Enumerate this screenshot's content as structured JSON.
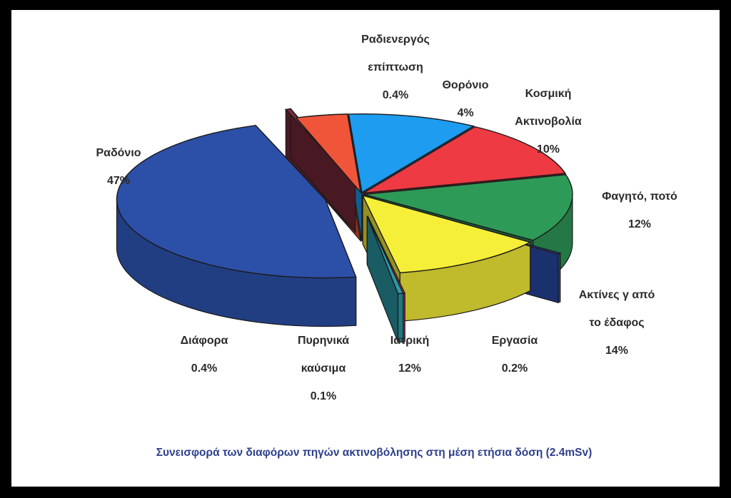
{
  "chart_data": {
    "type": "pie",
    "title": "Συνεισφορά των διαφόρων πηγών ακτινοβόλησης στη μέση ετήσια δόση (2.4mSv)",
    "unit": "%",
    "slices": [
      {
        "label_lines": [
          "Ραδόνιο"
        ],
        "value": 47,
        "value_label": "47%",
        "color": "#2c4fa8"
      },
      {
        "label_lines": [
          "Ραδιενεργός",
          "επίπτωση"
        ],
        "value": 0.4,
        "value_label": "0.4%",
        "color": "#7a2a3a"
      },
      {
        "label_lines": [
          "Θορόνιο"
        ],
        "value": 4,
        "value_label": "4%",
        "color": "#f0553a"
      },
      {
        "label_lines": [
          "Κοσμική",
          "Ακτινοβολία"
        ],
        "value": 10,
        "value_label": "10%",
        "color": "#1e9cf0"
      },
      {
        "label_lines": [
          "Φαγητό, ποτό"
        ],
        "value": 12,
        "value_label": "12%",
        "color": "#ee3a42"
      },
      {
        "label_lines": [
          "Ακτίνες γ από",
          "το έδαφος"
        ],
        "value": 14,
        "value_label": "14%",
        "color": "#2e9a58"
      },
      {
        "label_lines": [
          "Εργασία"
        ],
        "value": 0.2,
        "value_label": "0.2%",
        "color": "#2d52b8"
      },
      {
        "label_lines": [
          "Ιατρική"
        ],
        "value": 12,
        "value_label": "12%",
        "color": "#f6ef3a"
      },
      {
        "label_lines": [
          "Πυρηνικά",
          "καύσιμα"
        ],
        "value": 0.1,
        "value_label": "0.1%",
        "color": "#f0307a"
      },
      {
        "label_lines": [
          "Διάφορα"
        ],
        "value": 0.4,
        "value_label": "0.4%",
        "color": "#2a9aa6"
      }
    ]
  }
}
